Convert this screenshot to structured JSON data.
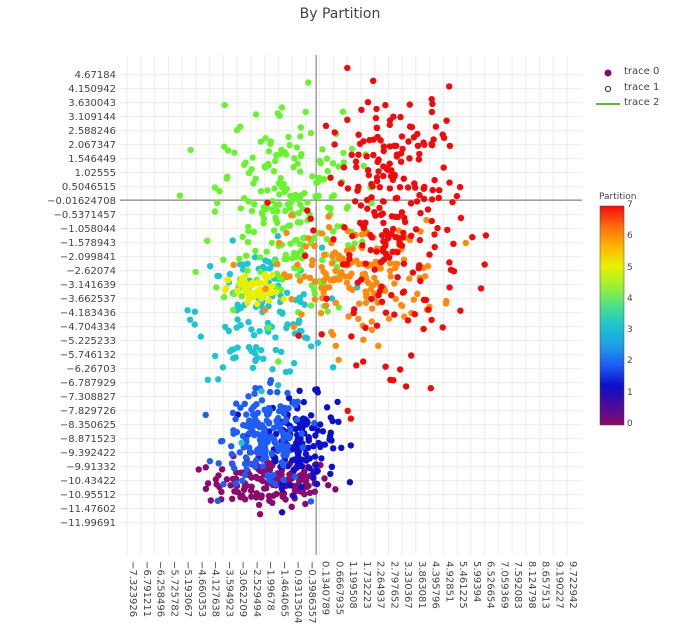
{
  "chart_data": {
    "type": "scatter",
    "title": "By Partition",
    "xlabel": "",
    "ylabel": "",
    "xlim": [
      -7.6,
      10.3
    ],
    "ylim": [
      -13.2,
      5.4
    ],
    "grid": true,
    "legend_position": "top-right",
    "x_ticks": [
      "-7.323926",
      "-6.791211",
      "-6.258496",
      "-5.725782",
      "-5.193067",
      "-4.660353",
      "-4.127638",
      "-3.594923",
      "-3.062209",
      "-2.529494",
      "-1.99678",
      "-1.464065",
      "-0.9313504",
      "-0.3986357",
      "0.1340789",
      "0.6667935",
      "1.199508",
      "1.732223",
      "2.264937",
      "2.797652",
      "3.330367",
      "3.863081",
      "4.395796",
      "4.92851",
      "5.461225",
      "5.99394",
      "6.526654",
      "7.059369",
      "7.592083",
      "8.124798",
      "8.657513",
      "9.190227",
      "9.722942"
    ],
    "y_ticks": [
      "4.67184",
      "4.150942",
      "3.630043",
      "3.109144",
      "2.588246",
      "2.067347",
      "1.546449",
      "1.02555",
      "0.5046515",
      "-0.01624708",
      "-0.5371457",
      "-1.058044",
      "-1.578943",
      "-2.099841",
      "-2.62074",
      "-3.141639",
      "-3.662537",
      "-4.183436",
      "-4.704334",
      "-5.225233",
      "-5.746132",
      "-6.26703",
      "-6.787929",
      "-7.308827",
      "-7.829726",
      "-8.350625",
      "-8.871523",
      "-9.392422",
      "-9.91332",
      "-10.43422",
      "-10.95512",
      "-11.47602",
      "-11.99691"
    ],
    "series": [
      {
        "name": "trace 0",
        "mode": "markers",
        "color_by": "Partition"
      },
      {
        "name": "trace 1",
        "mode": "markers"
      },
      {
        "name": "trace 2",
        "mode": "lines",
        "color": "#5fb43a"
      }
    ],
    "partitions": [
      {
        "id": 0,
        "color": "#8a0a6e",
        "center": [
          -1.8,
          -10.5
        ],
        "spread": [
          1.2,
          0.45
        ]
      },
      {
        "id": 1,
        "color": "#0c10c8",
        "center": [
          -0.6,
          -8.9
        ],
        "spread": [
          0.7,
          0.8
        ]
      },
      {
        "id": 2,
        "color": "#1f5df5",
        "center": [
          -2.0,
          -8.9
        ],
        "spread": [
          0.8,
          0.9
        ]
      },
      {
        "id": 3,
        "color": "#1ec4cf",
        "center": [
          -2.2,
          -4.2
        ],
        "spread": [
          1.2,
          1.2
        ]
      },
      {
        "id": 4,
        "color": "#6af232",
        "center": [
          -1.2,
          -0.3
        ],
        "spread": [
          1.4,
          2.0
        ]
      },
      {
        "id": 5,
        "color": "#e8f000",
        "center": [
          -2.4,
          -3.4
        ],
        "spread": [
          0.5,
          0.3
        ]
      },
      {
        "id": 6,
        "color": "#ff8a10",
        "center": [
          1.6,
          -2.8
        ],
        "spread": [
          1.6,
          1.0
        ]
      },
      {
        "id": 7,
        "color": "#f00a0a",
        "center": [
          3.0,
          -0.5
        ],
        "spread": [
          1.3,
          2.6
        ]
      }
    ],
    "colorscale": [
      "#8a0a6e",
      "#4a0a9c",
      "#0c10c8",
      "#1f5df5",
      "#1ea0e6",
      "#1ec4cf",
      "#4fe08a",
      "#a0f030",
      "#e8f000",
      "#ffb300",
      "#ff6a10",
      "#f00a0a"
    ],
    "colorbar": {
      "title": "Partition",
      "range": [
        0,
        7
      ],
      "ticks": [
        "0",
        "1",
        "2",
        "3",
        "4",
        "5",
        "6",
        "7"
      ]
    }
  }
}
